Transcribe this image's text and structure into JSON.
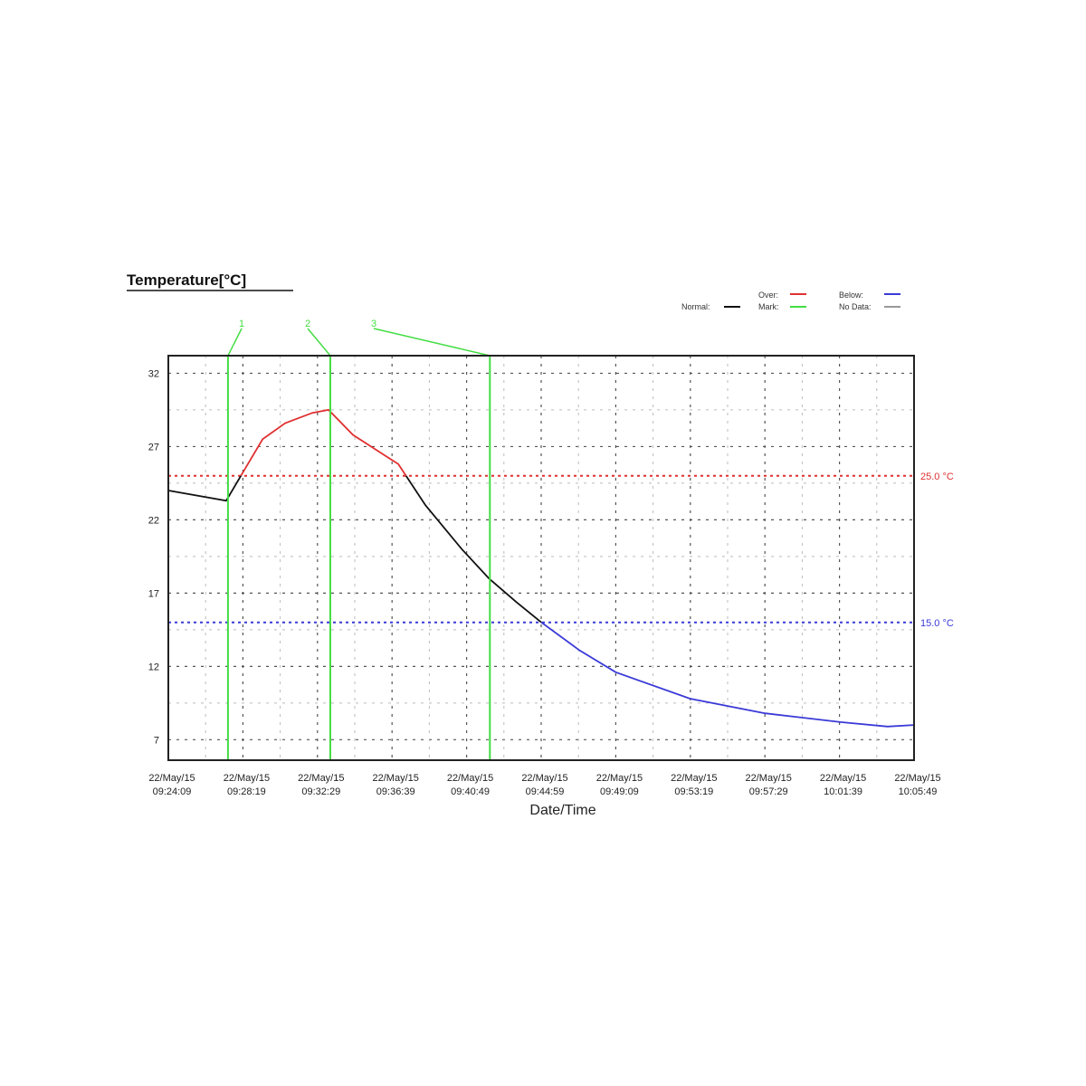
{
  "chart_data": {
    "type": "line",
    "title": "Temperature[°C]",
    "xlabel": "Date/Time",
    "ylabel": "",
    "ylim": [
      5.6,
      33.2
    ],
    "xlim": [
      "09:24:09",
      "10:05:49"
    ],
    "grid": true,
    "y_ticks": [
      "32",
      "27",
      "22",
      "17",
      "12",
      "7"
    ],
    "x_ticks": [
      {
        "date": "22/May/15",
        "time": "09:24:09"
      },
      {
        "date": "22/May/15",
        "time": "09:28:19"
      },
      {
        "date": "22/May/15",
        "time": "09:32:29"
      },
      {
        "date": "22/May/15",
        "time": "09:36:39"
      },
      {
        "date": "22/May/15",
        "time": "09:40:49"
      },
      {
        "date": "22/May/15",
        "time": "09:44:59"
      },
      {
        "date": "22/May/15",
        "time": "09:49:09"
      },
      {
        "date": "22/May/15",
        "time": "09:53:19"
      },
      {
        "date": "22/May/15",
        "time": "09:57:29"
      },
      {
        "date": "22/May/15",
        "time": "10:01:39"
      },
      {
        "date": "22/May/15",
        "time": "10:05:49"
      }
    ],
    "series": [
      {
        "points": [
          [
            "09:24:09",
            24.0
          ],
          [
            "09:27:23",
            23.3
          ],
          [
            "09:28:24",
            25.4
          ],
          [
            "09:29:25",
            27.5
          ],
          [
            "09:30:41",
            28.6
          ],
          [
            "09:32:12",
            29.3
          ],
          [
            "09:33:06",
            29.5
          ],
          [
            "09:34:28",
            27.8
          ],
          [
            "09:35:59",
            26.6
          ],
          [
            "09:37:00",
            25.8
          ],
          [
            "09:38:31",
            23.0
          ],
          [
            "09:40:33",
            20.0
          ],
          [
            "09:42:04",
            18.0
          ],
          [
            "09:43:35",
            16.4
          ],
          [
            "09:45:00",
            15.0
          ],
          [
            "09:47:07",
            13.1
          ],
          [
            "09:49:09",
            11.6
          ],
          [
            "09:53:18",
            9.8
          ],
          [
            "09:57:30",
            8.8
          ],
          [
            "10:01:42",
            8.2
          ],
          [
            "10:04:20",
            7.9
          ],
          [
            "10:05:49",
            8.0
          ]
        ]
      }
    ],
    "thresholds": [
      {
        "label": "25.0 °C",
        "value": 25.0,
        "color": "#e03030"
      },
      {
        "label": "15.0 °C",
        "value": 15.0,
        "color": "#3a3ad8"
      }
    ],
    "marks": [
      {
        "label": "1",
        "time": "09:27:29"
      },
      {
        "label": "2",
        "time": "09:33:12"
      },
      {
        "label": "3",
        "time": "09:42:07"
      }
    ],
    "legend": {
      "placement": "top-right",
      "items": [
        {
          "label": "Normal:",
          "color": "#111111"
        },
        {
          "label": "Over:",
          "color": "#e03030"
        },
        {
          "label": "Mark:",
          "color": "#44dd44"
        },
        {
          "label": "Below:",
          "color": "#3a3ad8"
        },
        {
          "label": "No Data:",
          "color": "#999999"
        }
      ]
    }
  }
}
